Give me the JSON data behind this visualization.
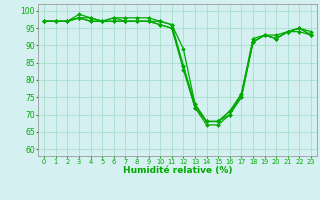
{
  "title": "",
  "xlabel": "Humidité relative (%)",
  "ylabel": "",
  "background_color": "#d4f0f0",
  "grid_color": "#aaddcc",
  "line_color": "#00aa00",
  "ylim": [
    58,
    102
  ],
  "xlim": [
    -0.5,
    23.5
  ],
  "yticks": [
    60,
    65,
    70,
    75,
    80,
    85,
    90,
    95,
    100
  ],
  "xticks": [
    0,
    1,
    2,
    3,
    4,
    5,
    6,
    7,
    8,
    9,
    10,
    11,
    12,
    13,
    14,
    15,
    16,
    17,
    18,
    19,
    20,
    21,
    22,
    23
  ],
  "series": [
    [
      97,
      97,
      97,
      98,
      97,
      97,
      97,
      97,
      97,
      97,
      96,
      95,
      83,
      72,
      67,
      67,
      70,
      76,
      91,
      93,
      92,
      94,
      95,
      93
    ],
    [
      97,
      97,
      97,
      99,
      98,
      97,
      98,
      97,
      97,
      97,
      97,
      96,
      84,
      73,
      68,
      68,
      71,
      75,
      91,
      93,
      93,
      94,
      95,
      94
    ],
    [
      97,
      97,
      97,
      98,
      97,
      97,
      97,
      97,
      97,
      97,
      96,
      95,
      84,
      72,
      68,
      68,
      70,
      75,
      91,
      93,
      92,
      94,
      94,
      93
    ],
    [
      97,
      97,
      97,
      98,
      98,
      97,
      98,
      98,
      98,
      98,
      97,
      96,
      89,
      73,
      68,
      68,
      71,
      76,
      92,
      93,
      92,
      94,
      95,
      93
    ]
  ],
  "xlabel_fontsize": 6.5,
  "xlabel_fontweight": "bold",
  "xtick_fontsize": 4.8,
  "ytick_fontsize": 5.5,
  "marker_size": 2.0,
  "line_width": 0.9
}
